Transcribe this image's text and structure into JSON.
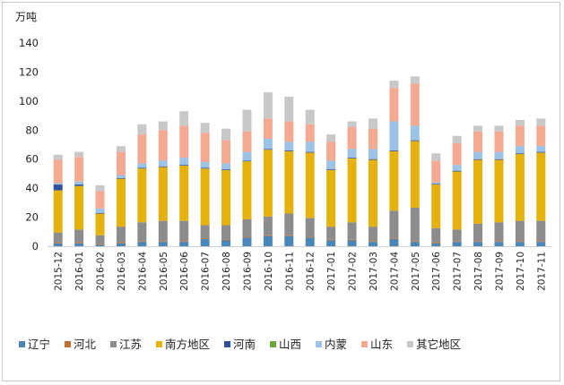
{
  "chart_data": {
    "type": "bar",
    "stacked": true,
    "unit_label": "万吨",
    "ylim": [
      0,
      140
    ],
    "yticks": [
      0,
      20,
      40,
      60,
      80,
      100,
      120,
      140
    ],
    "grid": false,
    "legend_position": "bottom",
    "categories": [
      "2015-12",
      "2016-01",
      "2016-02",
      "2016-03",
      "2016-04",
      "2016-05",
      "2016-06",
      "2016-07",
      "2016-08",
      "2016-09",
      "2016-10",
      "2016-11",
      "2016-12",
      "2017-01",
      "2017-02",
      "2017-03",
      "2017-04",
      "2017-05",
      "2017-06",
      "2017-07",
      "2017-08",
      "2017-09",
      "2017-10",
      "2017-11"
    ],
    "series": [
      {
        "name": "辽宁",
        "color": "#4a86b8",
        "values": [
          2,
          2,
          1,
          2,
          3,
          3,
          3,
          5,
          4,
          6,
          7,
          7,
          6,
          4,
          4,
          3,
          5,
          3,
          2,
          3,
          3,
          3,
          3,
          3
        ]
      },
      {
        "name": "河北",
        "color": "#c5702e",
        "values": [
          0.5,
          0.5,
          0.5,
          0.5,
          0.5,
          0.5,
          0.5,
          0.5,
          0.5,
          0.5,
          0.5,
          0.5,
          0.5,
          0.5,
          0.5,
          0.5,
          0.5,
          0.5,
          0.5,
          0.5,
          0.5,
          0.5,
          0.5,
          0.5
        ]
      },
      {
        "name": "江苏",
        "color": "#8c8c8c",
        "values": [
          7,
          9,
          6,
          11,
          13,
          14,
          14,
          9,
          10,
          12,
          13,
          15,
          13,
          9,
          12,
          10,
          19,
          23,
          10,
          8,
          12,
          13,
          14,
          14
        ]
      },
      {
        "name": "南方地区",
        "color": "#e5b10c",
        "values": [
          29,
          30,
          15,
          33,
          37,
          37,
          38,
          39,
          38,
          40,
          46,
          43,
          45,
          39,
          44,
          46,
          41,
          46,
          30,
          40,
          44,
          43,
          46,
          47
        ]
      },
      {
        "name": "河南",
        "color": "#2e4f9c",
        "values": [
          4,
          1,
          0.5,
          0.5,
          0.5,
          0.5,
          0.5,
          0.5,
          0.5,
          0.5,
          0.5,
          0.5,
          0.5,
          0.5,
          0.5,
          0.5,
          0.5,
          0.5,
          0.5,
          0.5,
          0.5,
          0.5,
          0.5,
          0.5
        ]
      },
      {
        "name": "山西",
        "color": "#6aa83c",
        "values": [
          0,
          0,
          0,
          0,
          0,
          0,
          0,
          0,
          0,
          0,
          0,
          0,
          0,
          0,
          0,
          0,
          0,
          0,
          0,
          0,
          0,
          0,
          0,
          0
        ]
      },
      {
        "name": "内蒙",
        "color": "#9cc3e6",
        "values": [
          1,
          2,
          3,
          2,
          3,
          4,
          5,
          4,
          4,
          6,
          7,
          6,
          7,
          6,
          6,
          7,
          20,
          10,
          1,
          4,
          5,
          5,
          5,
          4
        ]
      },
      {
        "name": "山东",
        "color": "#f4a993",
        "values": [
          16,
          17,
          12,
          16,
          20,
          21,
          22,
          20,
          16,
          14,
          14,
          14,
          12,
          13,
          15,
          14,
          23,
          29,
          15,
          15,
          14,
          14,
          14,
          14
        ]
      },
      {
        "name": "其它地区",
        "color": "#c8c8c8",
        "values": [
          3.5,
          3.5,
          4,
          4,
          7,
          6,
          10,
          7,
          8,
          15,
          18,
          17,
          10,
          5,
          4,
          7,
          5,
          5,
          5,
          5,
          4,
          4,
          4,
          5
        ]
      }
    ]
  }
}
